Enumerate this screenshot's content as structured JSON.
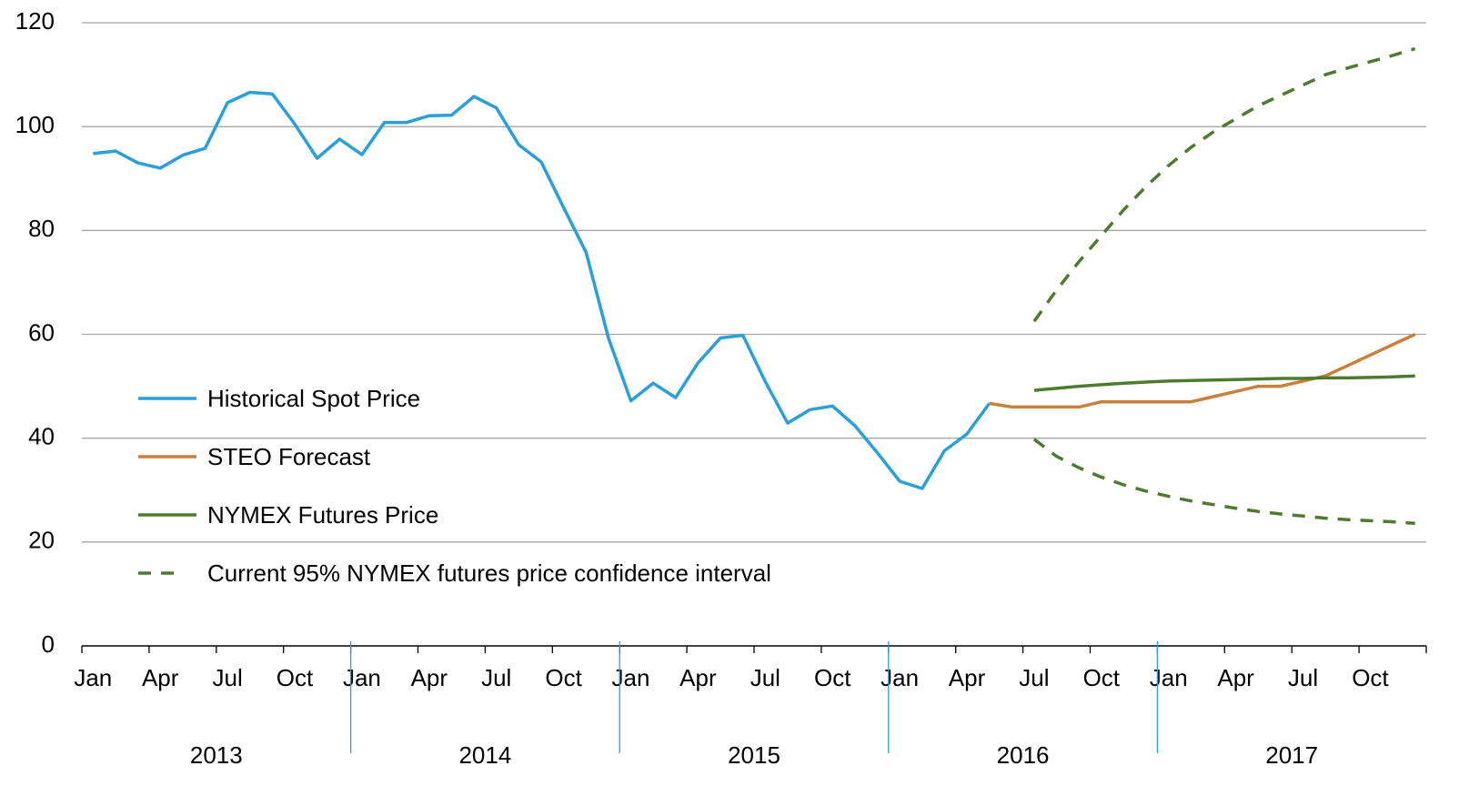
{
  "chart_data": {
    "type": "line",
    "categories": [
      "Jan",
      null,
      null,
      "Apr",
      null,
      null,
      "Jul",
      null,
      null,
      "Oct",
      null,
      null,
      "Jan",
      null,
      null,
      "Apr",
      null,
      null,
      "Jul",
      null,
      null,
      "Oct",
      null,
      null,
      "Jan",
      null,
      null,
      "Apr",
      null,
      null,
      "Jul",
      null,
      null,
      "Oct",
      null,
      null,
      "Jan",
      null,
      null,
      "Apr",
      null,
      null,
      "Jul",
      null,
      null,
      "Oct",
      null,
      null,
      "Jan",
      null,
      null,
      "Apr",
      null,
      null,
      "Jul",
      null,
      null,
      "Oct",
      null,
      null
    ],
    "groups": [
      "2013",
      "2014",
      "2015",
      "2016",
      "2017"
    ],
    "ylim": [
      0,
      120
    ],
    "yticks": [
      0,
      20,
      40,
      60,
      80,
      100,
      120
    ],
    "grid": true,
    "series": [
      {
        "name": "Historical Spot Price",
        "color": "#2a9fd8",
        "values": [
          94.8,
          95.3,
          93,
          92,
          94.5,
          95.8,
          104.6,
          106.6,
          106.3,
          100.5,
          93.9,
          97.6,
          94.6,
          100.8,
          100.8,
          102.1,
          102.2,
          105.8,
          103.6,
          96.5,
          93.2,
          84.4,
          75.8,
          59.3,
          47.2,
          50.6,
          47.8,
          54.5,
          59.3,
          59.8,
          50.9,
          42.9,
          45.5,
          46.2,
          42.4,
          37.2,
          31.7,
          30.3,
          37.6,
          40.8,
          46.7,
          null,
          null,
          null,
          null,
          null,
          null,
          null,
          null,
          null,
          null,
          null,
          null,
          null,
          null,
          null,
          null,
          null,
          null,
          null
        ]
      },
      {
        "name": "STEO Forecast",
        "color": "#c8803a",
        "values": [
          null,
          null,
          null,
          null,
          null,
          null,
          null,
          null,
          null,
          null,
          null,
          null,
          null,
          null,
          null,
          null,
          null,
          null,
          null,
          null,
          null,
          null,
          null,
          null,
          null,
          null,
          null,
          null,
          null,
          null,
          null,
          null,
          null,
          null,
          null,
          null,
          null,
          null,
          null,
          null,
          46.7,
          46,
          46,
          46,
          46,
          47,
          47,
          47,
          47,
          47,
          48,
          49,
          50,
          50,
          51,
          52,
          54,
          56,
          58,
          60
        ]
      },
      {
        "name": "NYMEX Futures Price",
        "color": "#4e7a2f",
        "values": [
          null,
          null,
          null,
          null,
          null,
          null,
          null,
          null,
          null,
          null,
          null,
          null,
          null,
          null,
          null,
          null,
          null,
          null,
          null,
          null,
          null,
          null,
          null,
          null,
          null,
          null,
          null,
          null,
          null,
          null,
          null,
          null,
          null,
          null,
          null,
          null,
          null,
          null,
          null,
          null,
          null,
          null,
          49.2,
          49.6,
          50.0,
          50.3,
          50.6,
          50.8,
          51.0,
          51.1,
          51.2,
          51.3,
          51.4,
          51.5,
          51.5,
          51.6,
          51.6,
          51.7,
          51.8,
          52.0
        ]
      },
      {
        "name": "Current 95% NYMEX futures price confidence interval",
        "color": "#4e7a2f",
        "dashed": true,
        "upper": [
          null,
          null,
          null,
          null,
          null,
          null,
          null,
          null,
          null,
          null,
          null,
          null,
          null,
          null,
          null,
          null,
          null,
          null,
          null,
          null,
          null,
          null,
          null,
          null,
          null,
          null,
          null,
          null,
          null,
          null,
          null,
          null,
          null,
          null,
          null,
          null,
          null,
          null,
          null,
          null,
          null,
          null,
          62.5,
          68.5,
          74,
          79,
          84,
          88.5,
          92.5,
          96,
          99,
          101.5,
          104,
          106,
          108,
          110,
          111.3,
          112.5,
          113.7,
          115
        ],
        "lower": [
          null,
          null,
          null,
          null,
          null,
          null,
          null,
          null,
          null,
          null,
          null,
          null,
          null,
          null,
          null,
          null,
          null,
          null,
          null,
          null,
          null,
          null,
          null,
          null,
          null,
          null,
          null,
          null,
          null,
          null,
          null,
          null,
          null,
          null,
          null,
          null,
          null,
          null,
          null,
          null,
          null,
          null,
          39.8,
          36.5,
          34.3,
          32.5,
          31,
          29.8,
          28.8,
          27.9,
          27.2,
          26.5,
          25.9,
          25.4,
          25,
          24.6,
          24.3,
          24.1,
          23.9,
          23.6
        ]
      }
    ]
  }
}
